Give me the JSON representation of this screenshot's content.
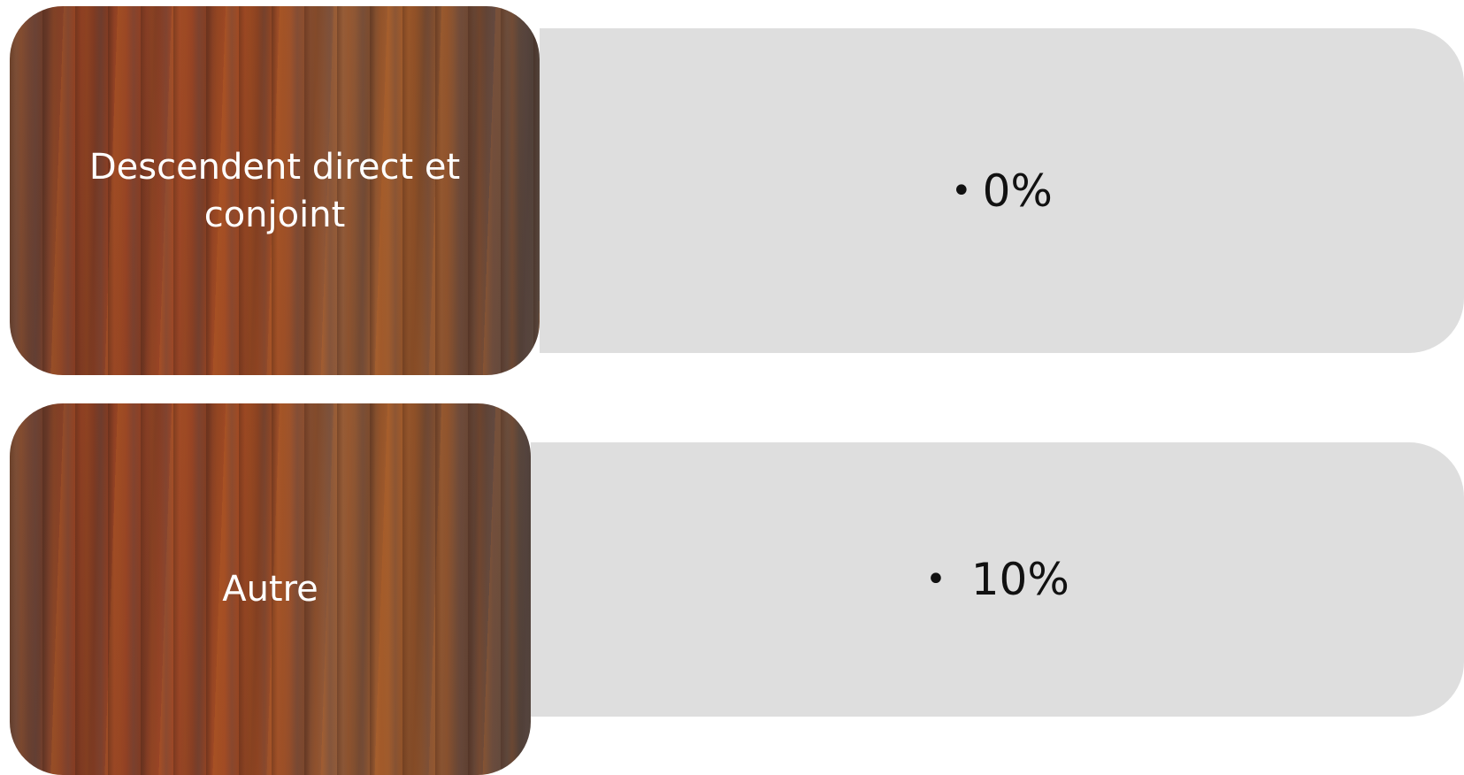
{
  "items": [
    {
      "label": "Descendent direct et conjoint",
      "value": "0%"
    },
    {
      "label": "Autre",
      "value": "10%"
    }
  ]
}
